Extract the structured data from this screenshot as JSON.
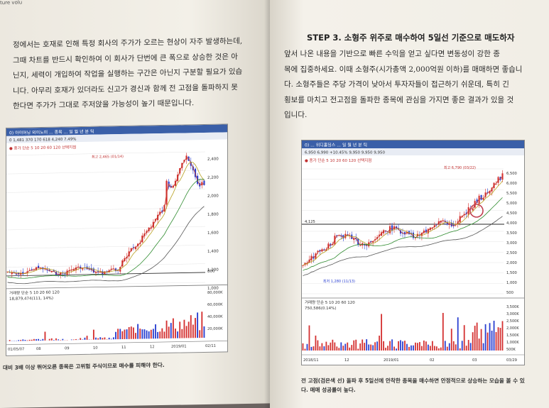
{
  "header_strip": "ture volu",
  "left_page": {
    "paragraph_lines": [
      "정에서는 호재로 인해 특정 회사의 주가가 오르는 현상이 자주 발생하는데,",
      "그때 차트를 반드시 확인하여 이 회사가 단번에 큰 폭으로 상승한 것은 아",
      "닌지, 세력이 개입하여 작업을 실행하는 구간은 아닌지 구분할 필요가 있습",
      "니다. 아무리 호재가 있더라도 신고가 경신과 함께 전 고점을 돌파하지 못",
      "한다면 주가가 그대로 주저앉을 가능성이 높기 때문입니다."
    ],
    "chart": {
      "toolbar_text": "0) 아이어닝 외이노미 ... 종목 ... 일 월 년 분 틱",
      "info_text": "0 1,481 370 170 618 4,240 7.49%",
      "legend_text": "● 종가 단순 5 10 20 60 120 선택지점",
      "y_ticks": [
        "2,400",
        "2,200",
        "2,000",
        "1,800",
        "1,600",
        "1,400",
        "1,200",
        "1,000",
        "800"
      ],
      "volume_legend": "거래량 단순 5 10 20 60 120",
      "volume_info": "18,879,474(111, 14%)",
      "volume_ticks": [
        "80,000K",
        "60,000K",
        "40,000K",
        "20,000K"
      ],
      "x_labels": [
        "01/05/07",
        "08",
        "09",
        "10",
        "11",
        "12",
        "2019/01",
        "02/11"
      ],
      "annotation": "최고 2,465 (01/14)"
    },
    "caption": "대비 3배 이상 뛰어오른 종목은 고위험 주식이므로 매수를 피해야 한다."
  },
  "right_page": {
    "heading": "STEP 3. 소형주 위주로 매수하여 5일선 기준으로 매도하자",
    "paragraph_lines": [
      "앞서 나온 내용을 기반으로 빠른 수익을 얻고 싶다면 변동성이 강한 종",
      "목에 집중하세요. 이때 소형주(시가총액 2,000억원 이하)를 매매하면 좋습니",
      "다. 소형주들은 주당 가격이 낮아서 투자자들이 접근하기 쉬운데, 특히 긴",
      "횡보를 마치고 전고점을 돌파한 종목에 관심을 가지면 좋은 결과가 있을 것",
      "입니다."
    ],
    "chart": {
      "toolbar_text": "0) ... 위디홀딩스 ... 일 월 년 분 틱",
      "info_text": "6,950 6,990 +10.45% 9,950 9,950 9,950",
      "legend_text": "● 종가 단순 5 10 20 60 120 선택지점",
      "y_ticks": [
        "6,500",
        "6,000",
        "5,500",
        "5,000",
        "4,500",
        "4,000",
        "3,500",
        "3,000",
        "2,500",
        "2,000",
        "1,500",
        "1,000",
        "500"
      ],
      "annotation_high": "최고 6,790 (03/22)",
      "annotation_low": "최저 1,280 (11/13)",
      "level_label": "4,125",
      "volume_legend": "거래량 단순 5 10 20 60 120",
      "volume_info": "750,586(0.14%)",
      "volume_ticks": [
        "3,500K",
        "3,000K",
        "2,500K",
        "2,000K",
        "1,500K",
        "1,000K",
        "500K"
      ],
      "x_labels": [
        "2018/11",
        "12",
        "2019/01",
        "02",
        "03",
        "03/29"
      ]
    },
    "caption": "전 고점(검은색 선) 돌파 후 5일선에 안착한 종목을 매수하면 안정적으로 상승하는 모습을 볼 수 있다. 매매 성공률이 높다."
  },
  "colors": {
    "candle_up": "#d43030",
    "candle_down": "#2a3fd0",
    "ma5": "#c0392b",
    "ma20": "#b8a020",
    "ma60": "#2e8b2e",
    "ma120": "#555555",
    "highlight": "#c04050"
  }
}
